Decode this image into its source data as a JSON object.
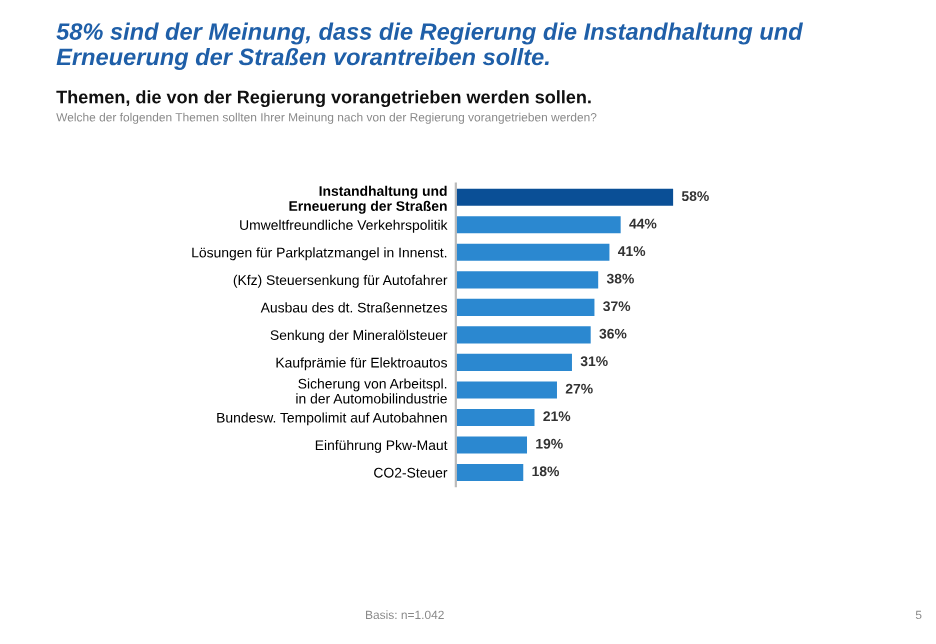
{
  "chart_data": {
    "type": "bar",
    "orientation": "horizontal",
    "title": "58% sind der Meinung, dass die Regierung die Instandhaltung und Erneuerung der Straßen vorantreiben sollte.",
    "subtitle": "Themen, die von der Regierung vorangetrieben werden sollen.",
    "annotations": [
      "Welche der folgenden Themen sollten Ihrer Meinung nach von der Regierung vorangetrieben werden?",
      "Basis: n=1.042",
      "5"
    ],
    "categories": [
      "Instandhaltung und\nErneuerung der Straßen",
      "Umweltfreundliche Verkehrspolitik",
      "Lösungen für Parkplatzmangel in Innenst.",
      "(Kfz) Steuersenkung für Autofahrer",
      "Ausbau des dt. Straßennetzes",
      "Senkung der Mineralölsteuer",
      "Kaufprämie für Elektroautos",
      "Sicherung von Arbeitspl.\nin der Automobilindustrie",
      "Bundesw. Tempolimit auf Autobahnen",
      "Einführung Pkw-Maut",
      "CO2-Steuer"
    ],
    "values": [
      58,
      44,
      41,
      38,
      37,
      36,
      31,
      27,
      21,
      19,
      18
    ],
    "value_labels": [
      "58%",
      "44%",
      "41%",
      "38%",
      "37%",
      "36%",
      "31%",
      "27%",
      "21%",
      "19%",
      "18%"
    ],
    "colors": [
      "#0a4f96",
      "#2b88d0",
      "#2b88d0",
      "#2b88d0",
      "#2b88d0",
      "#2b88d0",
      "#2b88d0",
      "#2b88d0",
      "#2b88d0",
      "#2b88d0",
      "#2b88d0"
    ],
    "grid": false,
    "legend": false
  }
}
